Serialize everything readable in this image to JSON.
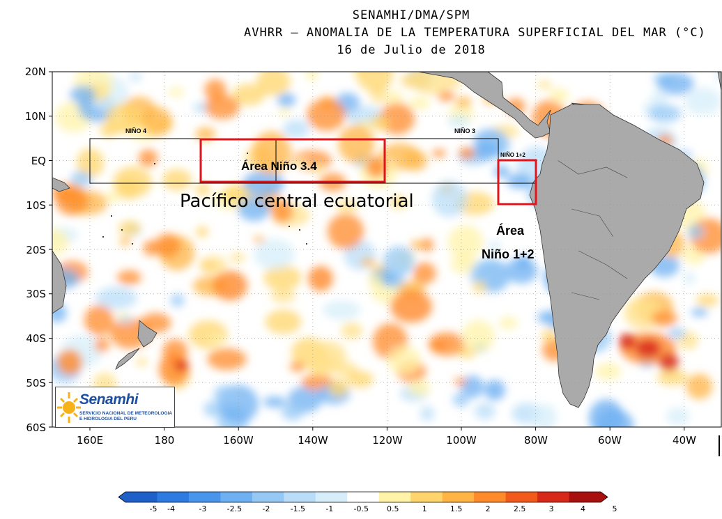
{
  "header": {
    "line1": "SENAMHI/DMA/SPM",
    "line2": "AVHRR – ANOMALIA DE LA TEMPERATURA SUPERFICIAL DEL MAR (°C)",
    "line3": "16 de Julio de 2018"
  },
  "map": {
    "lat_labels": [
      "20N",
      "10N",
      "EQ",
      "10S",
      "20S",
      "30S",
      "40S",
      "50S",
      "60S"
    ],
    "lon_labels": [
      "160E",
      "180",
      "160W",
      "140W",
      "120W",
      "100W",
      "80W",
      "60W",
      "40W"
    ],
    "region_labels": {
      "nino4": "NIÑO 4",
      "nino3": "NIÑO 3",
      "nino12_small": "NIÑO 1+2"
    },
    "annotations": {
      "nino34_area": "Área Niño 3.4",
      "central_pacific": "Pacífico central ecuatorial",
      "nino12_area_line1": "Área",
      "nino12_area_line2": "Niño 1+2"
    },
    "colors": {
      "land": "#aaaaaa",
      "highlight_box": "#e0141a",
      "region_box": "#000000"
    }
  },
  "logo": {
    "name": "Senamhi",
    "subtitle": "SERVICIO NACIONAL DE METEOROLOGIA E HIDROLOGIA DEL PERU"
  },
  "colorbar": {
    "ticks": [
      "-5",
      "-4",
      "-3",
      "-2.5",
      "-2",
      "-1.5",
      "-1",
      "-0.5",
      "0.5",
      "1",
      "1.5",
      "2",
      "2.5",
      "3",
      "4",
      "5"
    ],
    "colors": [
      "#1f5fc8",
      "#2d7be0",
      "#4a95ec",
      "#6fb0f2",
      "#96c8f6",
      "#b9ddf8",
      "#d6eefa",
      "#ffffff",
      "#fff3a8",
      "#ffd56b",
      "#ffb444",
      "#ff8a2a",
      "#f25a1c",
      "#d8281a",
      "#a8100f"
    ]
  }
}
